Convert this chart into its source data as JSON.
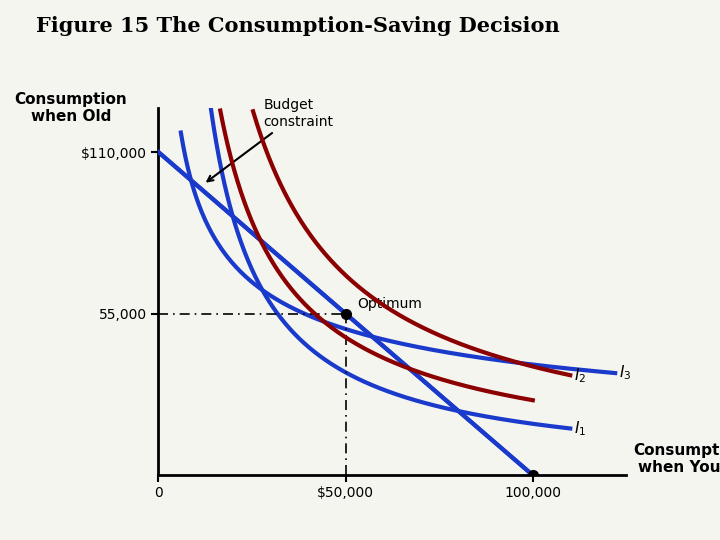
{
  "title": "Figure 15 The Consumption-Saving Decision",
  "xlabel": "Consumption\nwhen Young",
  "ylabel": "Consumption\nwhen Old",
  "xlim": [
    0,
    125000
  ],
  "ylim": [
    0,
    125000
  ],
  "x_ticks": [
    0,
    50000,
    100000
  ],
  "x_tick_labels": [
    "0",
    "$50,000",
    "100,000"
  ],
  "y_ticks": [
    55000,
    110000
  ],
  "y_tick_labels": [
    "55,000",
    "$110,000"
  ],
  "optimum_x": 50000,
  "optimum_y": 55000,
  "budget_color": "#1a3acc",
  "indiff_blue_color": "#1a3acc",
  "indiff_red_color": "#8b0000",
  "background_color": "#f5f5f0",
  "title_fontsize": 15,
  "label_fontsize": 11,
  "lw": 3.0
}
